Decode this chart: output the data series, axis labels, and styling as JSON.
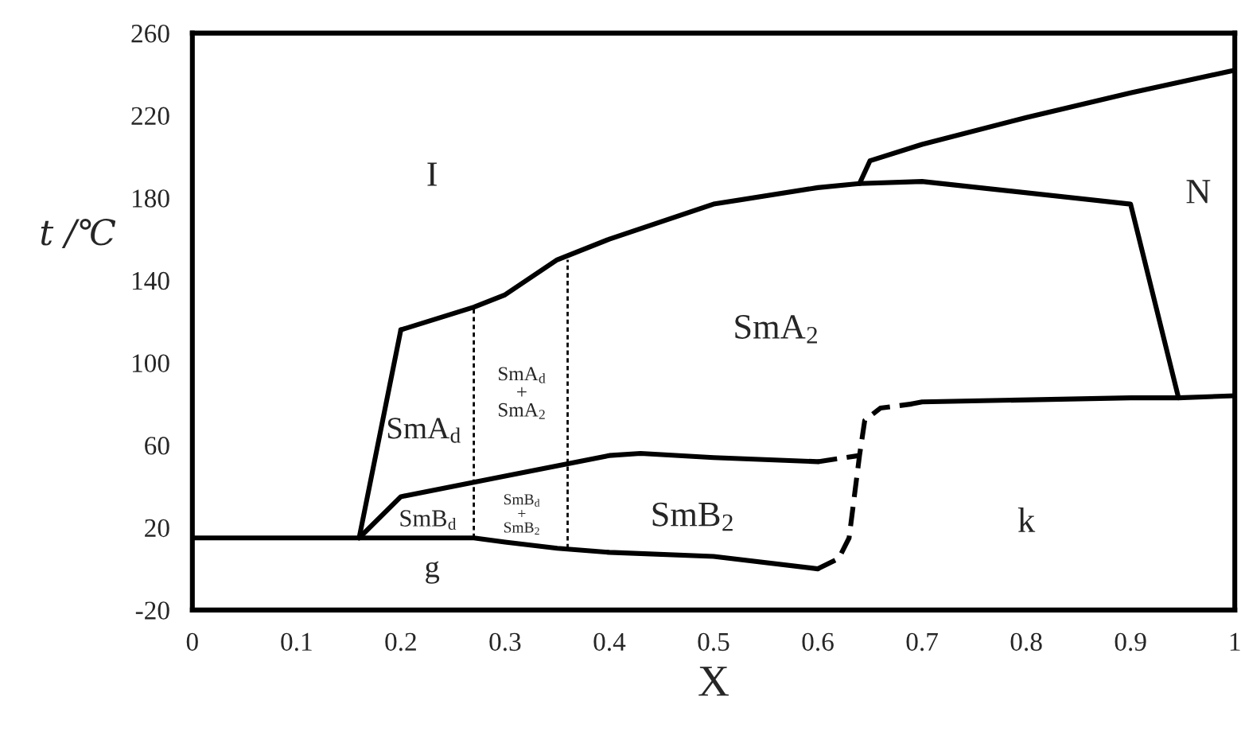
{
  "chart_data": {
    "type": "line",
    "xlabel": "X",
    "ylabel": "t /℃",
    "xlim": [
      0,
      1
    ],
    "ylim": [
      -20,
      260
    ],
    "xticks": [
      0,
      0.1,
      0.2,
      0.3,
      0.4,
      0.5,
      0.6,
      0.7,
      0.8,
      0.9,
      1
    ],
    "yticks": [
      -20,
      20,
      60,
      100,
      140,
      180,
      220,
      260
    ],
    "grid": false,
    "legend": false,
    "marker": "none",
    "series": [
      {
        "color": "#000000",
        "line_style": "solid",
        "x": [
          0,
          0.1,
          0.16,
          0.27,
          0.3,
          0.35,
          0.4,
          0.5,
          0.6
        ],
        "values": [
          15,
          15,
          15,
          15,
          13,
          10,
          8,
          6,
          0
        ]
      },
      {
        "color": "#000000",
        "line_style": "dashed",
        "x": [
          0.6,
          0.62,
          0.63,
          0.635,
          0.64,
          0.645,
          0.66,
          0.69
        ],
        "values": [
          0,
          5,
          15,
          35,
          55,
          72,
          78,
          80
        ]
      },
      {
        "color": "#000000",
        "line_style": "solid",
        "x": [
          0.69,
          0.7,
          0.9,
          0.946,
          1
        ],
        "values": [
          80,
          81,
          83,
          83,
          84
        ]
      },
      {
        "color": "#000000",
        "line_style": "solid",
        "x": [
          0.16,
          0.2,
          0.3,
          0.4,
          0.43,
          0.5,
          0.6
        ],
        "values": [
          15,
          35,
          45,
          55,
          56,
          54,
          52
        ]
      },
      {
        "color": "#000000",
        "line_style": "dashed",
        "x": [
          0.6,
          0.64
        ],
        "values": [
          52,
          55
        ]
      },
      {
        "color": "#000000",
        "line_style": "solid",
        "x": [
          0.16,
          0.2
        ],
        "values": [
          15,
          116
        ]
      },
      {
        "color": "#000000",
        "line_style": "solid",
        "x": [
          0.2,
          0.27,
          0.3,
          0.35,
          0.4,
          0.5,
          0.6,
          0.64,
          0.7,
          0.9,
          0.946
        ],
        "values": [
          116,
          127,
          133,
          150,
          160,
          177,
          185,
          187,
          188,
          177,
          83
        ]
      },
      {
        "color": "#000000",
        "line_style": "solid",
        "x": [
          0.64,
          0.65,
          0.7,
          0.8,
          0.9,
          1
        ],
        "values": [
          187,
          198,
          206,
          219,
          231,
          242
        ]
      },
      {
        "color": "#000000",
        "line_style": "dotted",
        "x": [
          0.27,
          0.27
        ],
        "values": [
          15,
          127
        ]
      },
      {
        "color": "#000000",
        "line_style": "dotted",
        "x": [
          0.36,
          0.36
        ],
        "values": [
          10,
          150
        ]
      }
    ],
    "annotations": [
      "I",
      "N",
      "SmA$_{2}$",
      "SmA$_{d}$",
      "SmA$_{d}$\n+\nSmA$_{2}$",
      "SmB$_{d}$",
      "SmB$_{d}$\n+\nSmB$_{2}$",
      "SmB$_{2}$",
      "k",
      "g"
    ]
  }
}
